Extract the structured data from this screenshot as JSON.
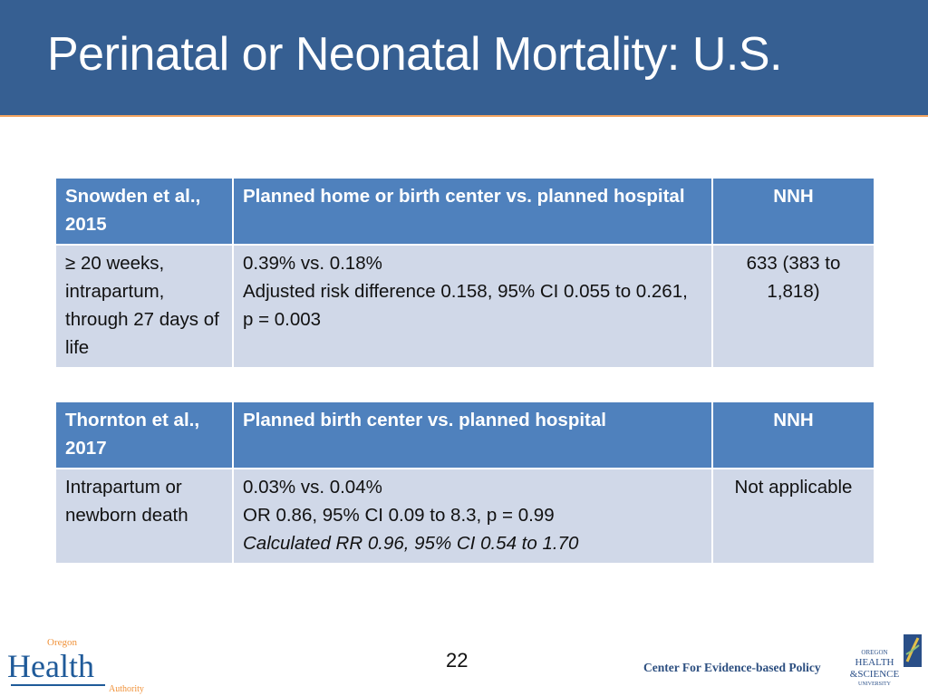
{
  "slide": {
    "title": "Perinatal or Neonatal Mortality: U.S.",
    "page_number": "22"
  },
  "tables": [
    {
      "header": [
        "Snowden et al., 2015",
        "Planned home or birth center vs. planned hospital",
        "NNH"
      ],
      "row": {
        "population": "≥ 20 weeks, intrapartum, through 27 days of life",
        "result_lines": [
          "0.39% vs. 0.18%",
          "Adjusted risk difference 0.158, 95% CI 0.055 to 0.261, p = 0.003"
        ],
        "nnh": "633 (383 to 1,818)"
      }
    },
    {
      "header": [
        "Thornton et al., 2017",
        "Planned birth center vs. planned hospital",
        "NNH"
      ],
      "row": {
        "population": "Intrapartum or newborn death",
        "result_lines": [
          "0.03% vs. 0.04%",
          "OR 0.86, 95% CI 0.09 to 8.3, p = 0.99",
          "Calculated RR 0.96, 95% CI 0.54 to 1.70"
        ],
        "nnh": "Not applicable"
      }
    }
  ],
  "footer": {
    "left_logo": {
      "lines": [
        "Oregon",
        "Health",
        "Authority"
      ]
    },
    "center_text": "Center For Evidence-based Policy",
    "right_logo": {
      "lines": [
        "OREGON",
        "HEALTH",
        "&SCIENCE",
        "UNIVERSITY"
      ]
    }
  },
  "colors": {
    "header_bg": "#365f92",
    "accent_line": "#f4a460",
    "table_header": "#4f81bd",
    "table_body": "#d0d8e8"
  }
}
